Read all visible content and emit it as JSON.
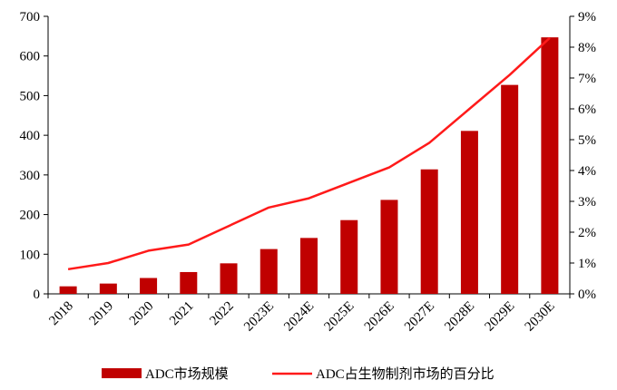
{
  "chart_data": {
    "type": "bar",
    "categories": [
      "2018",
      "2019",
      "2020",
      "2021",
      "2022",
      "2023E",
      "2024E",
      "2025E",
      "2026E",
      "2027E",
      "2028E",
      "2029E",
      "2030E"
    ],
    "series": [
      {
        "name": "ADC市场规模",
        "type": "bar",
        "axis": "left",
        "color": "#C00000",
        "values": [
          19,
          26,
          40,
          55,
          77,
          113,
          141,
          186,
          237,
          314,
          411,
          527,
          647
        ]
      },
      {
        "name": "ADC占生物制剂市场的百分比",
        "type": "line",
        "axis": "right",
        "color": "#FF1A1A",
        "values": [
          0.8,
          1.0,
          1.4,
          1.6,
          2.2,
          2.8,
          3.1,
          3.6,
          4.1,
          4.9,
          6.0,
          7.1,
          8.3
        ]
      }
    ],
    "y_left": {
      "min": 0,
      "max": 700,
      "ticks": [
        "0",
        "100",
        "200",
        "300",
        "400",
        "500",
        "600",
        "700"
      ]
    },
    "y_right": {
      "min": 0,
      "max": 9,
      "ticks": [
        "0%",
        "1%",
        "2%",
        "3%",
        "4%",
        "5%",
        "6%",
        "7%",
        "8%",
        "9%"
      ]
    },
    "title": "",
    "xlabel": "",
    "ylabel": "",
    "grid": false,
    "legend_position": "bottom"
  }
}
